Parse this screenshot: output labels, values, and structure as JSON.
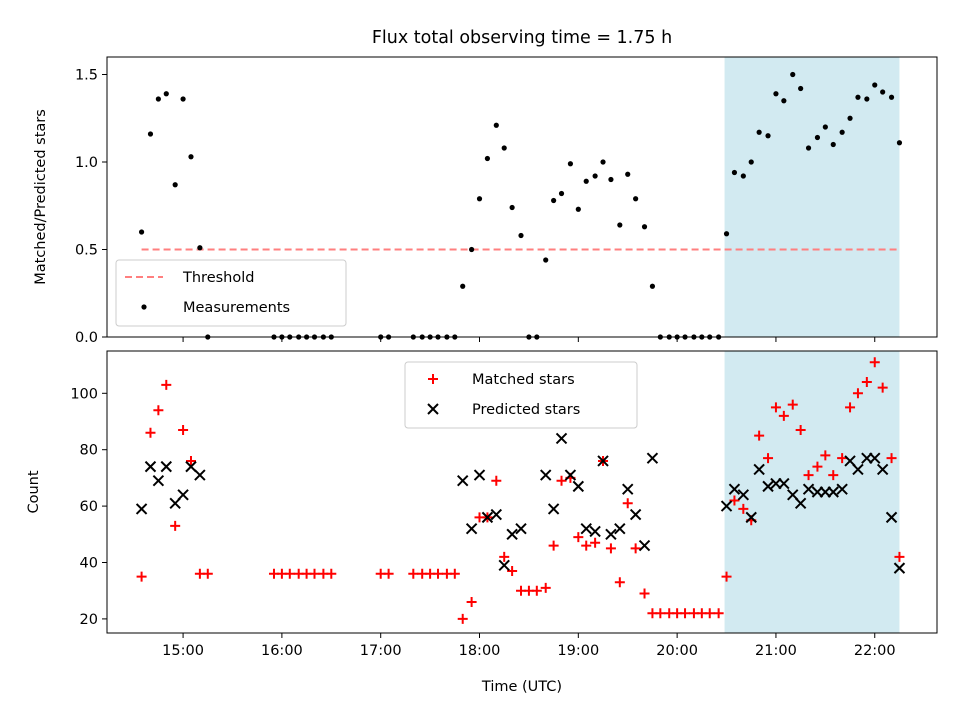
{
  "chart_data": [
    {
      "type": "scatter",
      "title": "Flux total observing time = 1.75 h",
      "xlabel": "",
      "ylabel": "Matched/Predicted stars",
      "xlim_hours": [
        14.23,
        22.63
      ],
      "ylim": [
        0,
        1.6
      ],
      "yticks": [
        0.0,
        0.5,
        1.0,
        1.5
      ],
      "ytick_labels": [
        "0.0",
        "0.5",
        "1.0",
        "1.5"
      ],
      "xticks": [
        15,
        16,
        17,
        18,
        19,
        20,
        21,
        22
      ],
      "xtick_labels": [
        "",
        "",
        "",
        "",
        "",
        "",
        "",
        ""
      ],
      "highlight": {
        "x_start": 20.48,
        "x_end": 22.25,
        "color": "#add8e6"
      },
      "legend_placement": "lower-left",
      "series": [
        {
          "name": "Threshold",
          "style": "dashed-line",
          "color": "#ff7f7f",
          "x": [
            14.58,
            22.25
          ],
          "y": [
            0.5,
            0.5
          ]
        },
        {
          "name": "Measurements",
          "style": "dot",
          "color": "#000000",
          "x": [
            14.58,
            14.67,
            14.75,
            14.83,
            14.92,
            15.0,
            15.08,
            15.17,
            15.25,
            15.92,
            16.0,
            16.08,
            16.17,
            16.25,
            16.33,
            16.42,
            16.5,
            17.0,
            17.08,
            17.33,
            17.42,
            17.5,
            17.58,
            17.67,
            17.75,
            17.83,
            17.92,
            18.0,
            18.08,
            18.17,
            18.25,
            18.33,
            18.42,
            18.5,
            18.58,
            18.67,
            18.75,
            18.83,
            18.92,
            19.0,
            19.08,
            19.17,
            19.25,
            19.33,
            19.42,
            19.5,
            19.58,
            19.67,
            19.75,
            19.83,
            19.92,
            20.0,
            20.08,
            20.17,
            20.25,
            20.33,
            20.42,
            20.5,
            20.58,
            20.67,
            20.75,
            20.83,
            20.92,
            21.0,
            21.08,
            21.17,
            21.25,
            21.33,
            21.42,
            21.5,
            21.58,
            21.67,
            21.75,
            21.83,
            21.92,
            22.0,
            22.08,
            22.17,
            22.25
          ],
          "y": [
            0.6,
            1.16,
            1.36,
            1.39,
            0.87,
            1.36,
            1.03,
            0.51,
            0.0,
            0.0,
            0.0,
            0.0,
            0.0,
            0.0,
            0.0,
            0.0,
            0.0,
            0.0,
            0.0,
            0.0,
            0.0,
            0.0,
            0.0,
            0.0,
            0.0,
            0.29,
            0.5,
            0.79,
            1.02,
            1.21,
            1.08,
            0.74,
            0.58,
            0.0,
            0.0,
            0.44,
            0.78,
            0.82,
            0.99,
            0.73,
            0.89,
            0.92,
            1.0,
            0.9,
            0.64,
            0.93,
            0.79,
            0.63,
            0.29,
            0.0,
            0.0,
            0.0,
            0.0,
            0.0,
            0.0,
            0.0,
            0.0,
            0.59,
            0.94,
            0.92,
            1.0,
            1.17,
            1.15,
            1.39,
            1.35,
            1.5,
            1.42,
            1.08,
            1.14,
            1.2,
            1.1,
            1.17,
            1.25,
            1.37,
            1.36,
            1.44,
            1.4,
            1.37,
            1.11
          ]
        }
      ]
    },
    {
      "type": "scatter",
      "title": "",
      "xlabel": "Time (UTC)",
      "ylabel": "Count",
      "xlim_hours": [
        14.23,
        22.63
      ],
      "ylim": [
        15,
        115
      ],
      "yticks": [
        20,
        40,
        60,
        80,
        100
      ],
      "ytick_labels": [
        "20",
        "40",
        "60",
        "80",
        "100"
      ],
      "xticks": [
        15,
        16,
        17,
        18,
        19,
        20,
        21,
        22
      ],
      "xtick_labels": [
        "15:00",
        "16:00",
        "17:00",
        "18:00",
        "19:00",
        "20:00",
        "21:00",
        "22:00"
      ],
      "highlight": {
        "x_start": 20.48,
        "x_end": 22.25,
        "color": "#add8e6"
      },
      "legend_placement": "upper-center",
      "series": [
        {
          "name": "Matched stars",
          "style": "plus",
          "color": "#ff0000",
          "x": [
            14.58,
            14.67,
            14.75,
            14.83,
            14.92,
            15.0,
            15.08,
            15.17,
            15.25,
            15.92,
            16.0,
            16.08,
            16.17,
            16.25,
            16.33,
            16.42,
            16.5,
            17.0,
            17.08,
            17.33,
            17.42,
            17.5,
            17.58,
            17.67,
            17.75,
            17.83,
            17.92,
            18.0,
            18.08,
            18.17,
            18.25,
            18.33,
            18.42,
            18.5,
            18.58,
            18.67,
            18.75,
            18.83,
            18.92,
            19.0,
            19.08,
            19.17,
            19.25,
            19.33,
            19.42,
            19.5,
            19.58,
            19.67,
            19.75,
            19.83,
            19.92,
            20.0,
            20.08,
            20.17,
            20.25,
            20.33,
            20.42,
            20.5,
            20.58,
            20.67,
            20.75,
            20.83,
            20.92,
            21.0,
            21.08,
            21.17,
            21.25,
            21.33,
            21.42,
            21.5,
            21.58,
            21.67,
            21.75,
            21.83,
            21.92,
            22.0,
            22.08,
            22.17,
            22.25
          ],
          "y": [
            35,
            86,
            94,
            103,
            53,
            87,
            76,
            36,
            36,
            36,
            36,
            36,
            36,
            36,
            36,
            36,
            36,
            36,
            36,
            36,
            36,
            36,
            36,
            36,
            36,
            20,
            26,
            56,
            56,
            69,
            42,
            37,
            30,
            30,
            30,
            31,
            46,
            69,
            70,
            49,
            46,
            47,
            76,
            45,
            33,
            61,
            45,
            29,
            22,
            22,
            22,
            22,
            22,
            22,
            22,
            22,
            22,
            35,
            62,
            59,
            55,
            85,
            77,
            95,
            92,
            96,
            87,
            71,
            74,
            78,
            71,
            77,
            95,
            100,
            104,
            111,
            102,
            77,
            42
          ]
        },
        {
          "name": "Predicted stars",
          "style": "x",
          "color": "#000000",
          "x": [
            14.58,
            14.67,
            14.75,
            14.83,
            14.92,
            15.0,
            15.08,
            15.17,
            17.83,
            17.92,
            18.0,
            18.08,
            18.17,
            18.25,
            18.33,
            18.42,
            18.67,
            18.75,
            18.83,
            18.92,
            19.0,
            19.08,
            19.17,
            19.25,
            19.33,
            19.42,
            19.5,
            19.58,
            19.67,
            19.75,
            20.5,
            20.58,
            20.67,
            20.75,
            20.83,
            20.92,
            21.0,
            21.08,
            21.17,
            21.25,
            21.33,
            21.42,
            21.5,
            21.58,
            21.67,
            21.75,
            21.83,
            21.92,
            22.0,
            22.08,
            22.17,
            22.25
          ],
          "y": [
            59,
            74,
            69,
            74,
            61,
            64,
            74,
            71,
            69,
            52,
            71,
            56,
            57,
            39,
            50,
            52,
            71,
            59,
            84,
            71,
            67,
            52,
            51,
            76,
            50,
            52,
            66,
            57,
            46,
            77,
            60,
            66,
            64,
            56,
            73,
            67,
            68,
            68,
            64,
            61,
            66,
            65,
            65,
            65,
            66,
            76,
            73,
            77,
            77,
            73,
            56,
            38
          ]
        }
      ]
    }
  ]
}
